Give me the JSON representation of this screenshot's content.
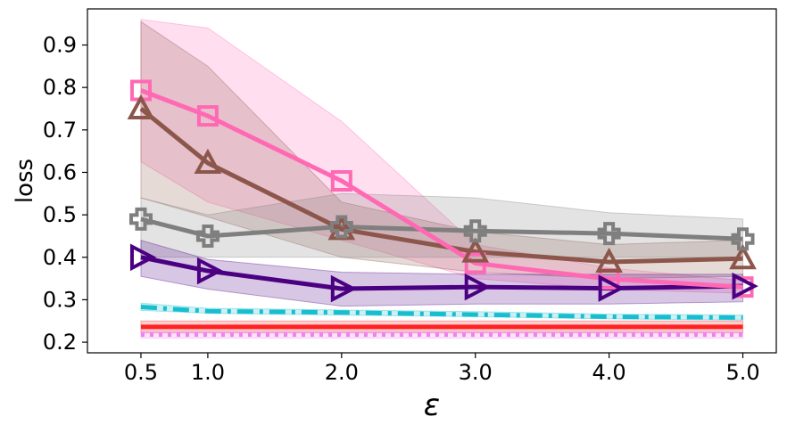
{
  "chart_data": {
    "type": "line",
    "xlabel": "ε",
    "ylabel": "loss",
    "x": [
      0.5,
      1.0,
      2.0,
      3.0,
      4.0,
      5.0
    ],
    "xlim": [
      0.1,
      5.25
    ],
    "ylim": [
      0.175,
      0.985
    ],
    "xticks": [
      0.5,
      1.0,
      2.0,
      3.0,
      4.0,
      5.0
    ],
    "xtick_labels": [
      "0.5",
      "1.0",
      "2.0",
      "3.0",
      "4.0",
      "5.0"
    ],
    "yticks": [
      0.2,
      0.3,
      0.4,
      0.5,
      0.6,
      0.7,
      0.8,
      0.9
    ],
    "ytick_labels": [
      "0.2",
      "0.3",
      "0.4",
      "0.5",
      "0.6",
      "0.7",
      "0.8",
      "0.9"
    ],
    "grid": false,
    "series": [
      {
        "name": "pink-squares",
        "color": "#ff69b4",
        "marker": "square",
        "dash": "solid",
        "values": [
          0.793,
          0.733,
          0.58,
          0.386,
          0.349,
          0.33
        ],
        "lower": [
          0.625,
          0.53,
          0.44,
          0.35,
          0.325,
          0.315
        ],
        "upper": [
          0.96,
          0.94,
          0.72,
          0.43,
          0.375,
          0.345
        ]
      },
      {
        "name": "brown-triangles-up",
        "color": "#8c564b",
        "marker": "triangle-up",
        "dash": "solid",
        "values": [
          0.75,
          0.622,
          0.466,
          0.413,
          0.389,
          0.397
        ],
        "lower": [
          0.54,
          0.495,
          0.4,
          0.365,
          0.35,
          0.355
        ],
        "upper": [
          0.955,
          0.85,
          0.53,
          0.46,
          0.43,
          0.44
        ]
      },
      {
        "name": "gray-plus",
        "color": "#7f7f7f",
        "marker": "plus",
        "dash": "solid",
        "values": [
          0.49,
          0.45,
          0.472,
          0.462,
          0.456,
          0.443
        ],
        "lower": [
          0.4,
          0.4,
          0.4,
          0.4,
          0.4,
          0.4
        ],
        "upper": [
          0.54,
          0.5,
          0.55,
          0.54,
          0.505,
          0.49
        ]
      },
      {
        "name": "indigo-triangles-right",
        "color": "#4b0082",
        "marker": "triangle-right",
        "dash": "solid",
        "values": [
          0.4,
          0.368,
          0.326,
          0.33,
          0.327,
          0.332
        ],
        "lower": [
          0.355,
          0.325,
          0.285,
          0.29,
          0.29,
          0.295
        ],
        "upper": [
          0.44,
          0.395,
          0.365,
          0.36,
          0.36,
          0.36
        ]
      },
      {
        "name": "cyan-dashdot",
        "color": "#17becf",
        "marker": "none",
        "dash": "dashdot",
        "values": [
          0.283,
          0.273,
          0.27,
          0.265,
          0.26,
          0.258
        ],
        "lower": [
          0.275,
          0.268,
          0.264,
          0.26,
          0.255,
          0.252
        ],
        "upper": [
          0.292,
          0.28,
          0.276,
          0.272,
          0.266,
          0.264
        ]
      },
      {
        "name": "red-solid",
        "color": "#ff2020",
        "marker": "none",
        "dash": "solid",
        "values": [
          0.236,
          0.236,
          0.236,
          0.236,
          0.236,
          0.236
        ],
        "lower": [
          0.222,
          0.222,
          0.222,
          0.222,
          0.222,
          0.222
        ],
        "upper": [
          0.25,
          0.25,
          0.25,
          0.25,
          0.25,
          0.25
        ]
      },
      {
        "name": "violet-dotted",
        "color": "#ee82ee",
        "marker": "none",
        "dash": "dotted",
        "values": [
          0.218,
          0.218,
          0.218,
          0.218,
          0.218,
          0.218
        ],
        "lower": [
          0.21,
          0.21,
          0.21,
          0.21,
          0.21,
          0.21
        ],
        "upper": [
          0.226,
          0.226,
          0.226,
          0.226,
          0.226,
          0.226
        ]
      }
    ]
  }
}
